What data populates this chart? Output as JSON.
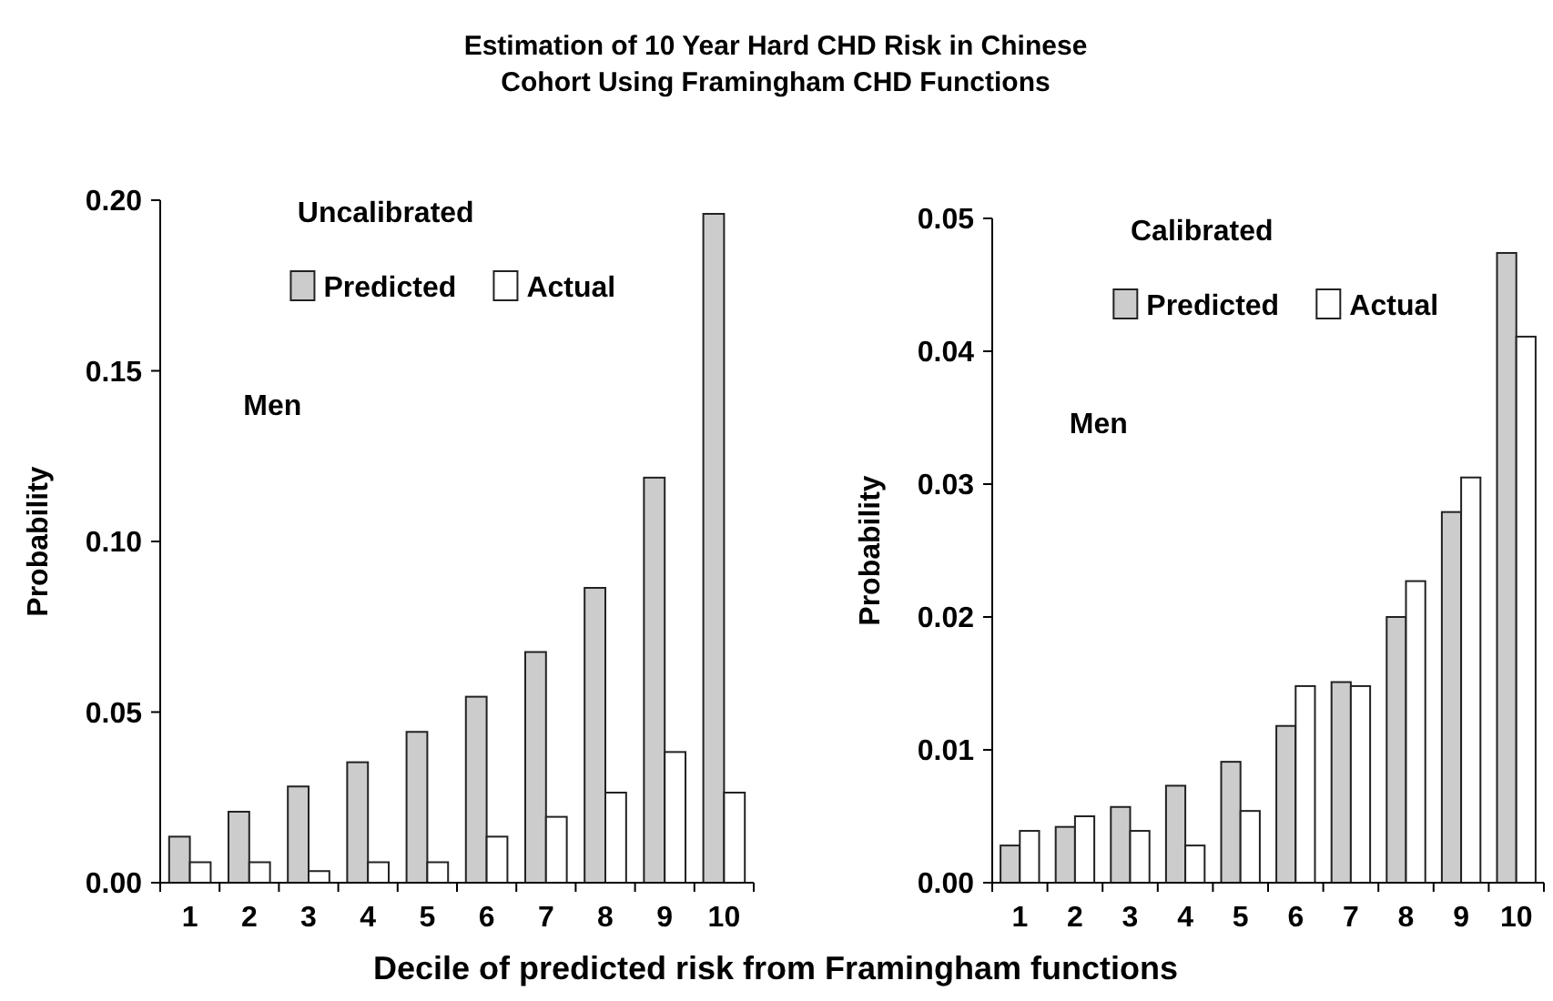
{
  "chart_data": [
    {
      "type": "bar",
      "title": "Estimation of 10 Year Hard CHD Risk in Chinese Cohort Using Framingham CHD Functions",
      "xlabel": "Decile of predicted risk from Framingham functions",
      "ylabel": "Probability",
      "annotations": [
        "Uncalibrated",
        "Men"
      ],
      "categories": [
        "1",
        "2",
        "3",
        "4",
        "5",
        "6",
        "7",
        "8",
        "9",
        "10"
      ],
      "series": [
        {
          "name": "Predicted",
          "color": "#cccccc",
          "values": [
            0.0135,
            0.0208,
            0.0282,
            0.0353,
            0.0442,
            0.0545,
            0.0676,
            0.0864,
            0.1187,
            0.196
          ]
        },
        {
          "name": "Actual",
          "color": "#ffffff",
          "values": [
            0.006,
            0.006,
            0.0034,
            0.006,
            0.006,
            0.0135,
            0.0193,
            0.0264,
            0.0383,
            0.0264
          ]
        }
      ],
      "ylim": [
        0,
        0.2
      ],
      "yticks": [
        {
          "value": 0,
          "label": "0.00"
        },
        {
          "value": 0.05,
          "label": "0.05"
        },
        {
          "value": 0.1,
          "label": "0.10"
        },
        {
          "value": 0.15,
          "label": "0.15"
        },
        {
          "value": 0.2,
          "label": "0.20"
        }
      ],
      "legend": "top",
      "grid": false
    },
    {
      "type": "bar",
      "ylabel": "Probability",
      "annotations": [
        "Calibrated",
        "Men"
      ],
      "categories": [
        "1",
        "2",
        "3",
        "4",
        "5",
        "6",
        "7",
        "8",
        "9",
        "10"
      ],
      "series": [
        {
          "name": "Predicted",
          "color": "#cccccc",
          "values": [
            0.0028,
            0.0042,
            0.0057,
            0.0073,
            0.0091,
            0.0118,
            0.0151,
            0.02,
            0.0279,
            0.0474
          ]
        },
        {
          "name": "Actual",
          "color": "#ffffff",
          "values": [
            0.0039,
            0.005,
            0.0039,
            0.0028,
            0.0054,
            0.0148,
            0.0148,
            0.0227,
            0.0305,
            0.0411
          ]
        }
      ],
      "ylim": [
        0,
        0.05
      ],
      "yticks": [
        {
          "value": 0,
          "label": "0.00"
        },
        {
          "value": 0.01,
          "label": "0.01"
        },
        {
          "value": 0.02,
          "label": "0.02"
        },
        {
          "value": 0.03,
          "label": "0.03"
        },
        {
          "value": 0.04,
          "label": "0.04"
        },
        {
          "value": 0.05,
          "label": "0.05"
        }
      ],
      "legend": "top",
      "grid": false
    }
  ]
}
